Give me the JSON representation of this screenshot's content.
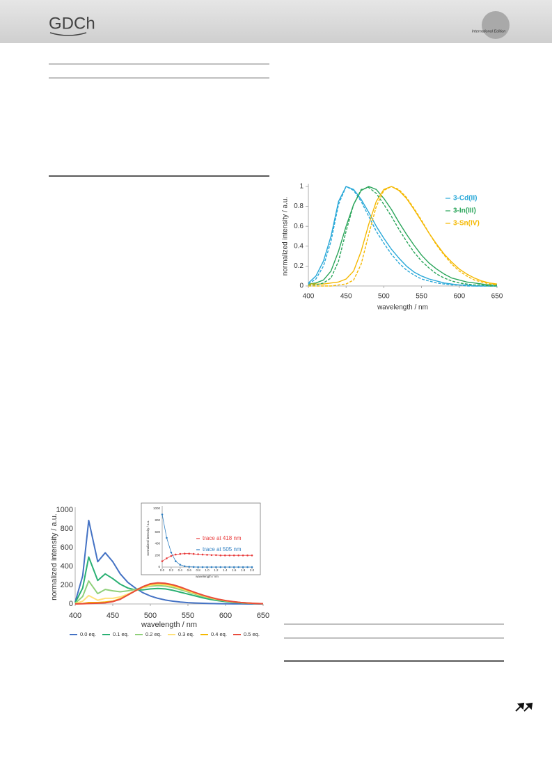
{
  "header": {
    "logo": "GDCh",
    "edition": "International Edition"
  },
  "chart_data": [
    {
      "type": "line",
      "xlabel": "wavelength / nm",
      "ylabel": "normalized intensity / a.u.",
      "xlim": [
        400,
        650
      ],
      "xticks": [
        400,
        450,
        500,
        550,
        600,
        650
      ],
      "ylim": [
        0,
        1
      ],
      "yticks": [
        0,
        0.2,
        0.4,
        0.6,
        0.8,
        1
      ],
      "grid": false,
      "legend": "upper right",
      "x": [
        400,
        410,
        420,
        430,
        440,
        450,
        460,
        470,
        480,
        490,
        500,
        510,
        520,
        530,
        540,
        550,
        560,
        570,
        580,
        590,
        600,
        610,
        620,
        630,
        640,
        650
      ],
      "series": [
        {
          "name": "3-Cd(II)",
          "color": "#29a8d8",
          "values": [
            0.03,
            0.1,
            0.25,
            0.5,
            0.85,
            1.0,
            0.97,
            0.87,
            0.74,
            0.6,
            0.48,
            0.37,
            0.28,
            0.2,
            0.14,
            0.1,
            0.07,
            0.05,
            0.03,
            0.02,
            0.01,
            0.01,
            0,
            0,
            0,
            0
          ]
        },
        {
          "name": "3-In(III)",
          "color": "#2aa55a",
          "values": [
            0.02,
            0.03,
            0.06,
            0.15,
            0.35,
            0.6,
            0.82,
            0.96,
            1.0,
            0.97,
            0.88,
            0.77,
            0.64,
            0.52,
            0.41,
            0.31,
            0.23,
            0.17,
            0.12,
            0.08,
            0.06,
            0.04,
            0.03,
            0.02,
            0.01,
            0.01
          ]
        },
        {
          "name": "3-Sn(IV)",
          "color": "#f5b800",
          "values": [
            0.02,
            0.02,
            0.02,
            0.03,
            0.04,
            0.07,
            0.15,
            0.35,
            0.62,
            0.85,
            0.97,
            1.0,
            0.96,
            0.88,
            0.77,
            0.65,
            0.53,
            0.42,
            0.32,
            0.24,
            0.17,
            0.12,
            0.08,
            0.05,
            0.03,
            0.02
          ]
        },
        {
          "color": "#29a8d8",
          "dashed": true,
          "values": [
            0.02,
            0.07,
            0.2,
            0.45,
            0.82,
            1.0,
            0.96,
            0.85,
            0.7,
            0.55,
            0.43,
            0.32,
            0.23,
            0.16,
            0.11,
            0.07,
            0.05,
            0.03,
            0.02,
            0.01,
            0.01,
            0,
            0,
            0,
            0,
            0
          ]
        },
        {
          "color": "#2aa55a",
          "dashed": true,
          "values": [
            0.01,
            0.01,
            0.03,
            0.08,
            0.25,
            0.55,
            0.82,
            0.97,
            0.99,
            0.93,
            0.82,
            0.7,
            0.57,
            0.45,
            0.34,
            0.25,
            0.18,
            0.12,
            0.08,
            0.05,
            0.03,
            0.02,
            0.01,
            0.01,
            0,
            0
          ]
        },
        {
          "color": "#f5b800",
          "dashed": true,
          "values": [
            0,
            0,
            0,
            0,
            0.01,
            0.02,
            0.06,
            0.22,
            0.52,
            0.8,
            0.96,
            1.0,
            0.97,
            0.89,
            0.78,
            0.66,
            0.53,
            0.41,
            0.31,
            0.22,
            0.15,
            0.1,
            0.06,
            0.04,
            0.02,
            0.01
          ]
        }
      ]
    },
    {
      "type": "line",
      "xlabel": "wavelength / nm",
      "ylabel": "normalized intensity / a.u.",
      "xlim": [
        400,
        650
      ],
      "xticks": [
        400,
        450,
        500,
        550,
        600,
        650
      ],
      "ylim": [
        0,
        1000
      ],
      "yticks": [
        0,
        200,
        400,
        600,
        800,
        1000
      ],
      "grid": false,
      "legend": "bottom",
      "x": [
        400,
        410,
        418,
        430,
        440,
        450,
        460,
        470,
        480,
        490,
        500,
        510,
        520,
        530,
        540,
        550,
        560,
        570,
        580,
        590,
        600,
        610,
        620,
        630,
        640,
        650
      ],
      "series": [
        {
          "name": "0.0 eq.",
          "color": "#4472c4",
          "values": [
            20,
            300,
            890,
            450,
            545,
            450,
            320,
            230,
            170,
            120,
            85,
            60,
            42,
            30,
            20,
            14,
            10,
            7,
            5,
            3,
            2,
            1,
            1,
            0,
            0,
            0
          ]
        },
        {
          "name": "0.1 eq.",
          "color": "#2ab073",
          "values": [
            12,
            170,
            500,
            250,
            320,
            270,
            210,
            170,
            150,
            150,
            160,
            165,
            160,
            145,
            125,
            105,
            85,
            65,
            48,
            35,
            25,
            17,
            11,
            7,
            4,
            2
          ]
        },
        {
          "name": "0.2 eq.",
          "color": "#8fd07a",
          "values": [
            6,
            80,
            245,
            110,
            155,
            140,
            130,
            140,
            155,
            175,
            190,
            195,
            190,
            175,
            152,
            128,
            103,
            80,
            60,
            44,
            31,
            21,
            14,
            9,
            5,
            3
          ]
        },
        {
          "name": "0.3 eq.",
          "color": "#ffe17a",
          "values": [
            3,
            30,
            90,
            40,
            60,
            60,
            75,
            105,
            140,
            175,
            200,
            210,
            205,
            190,
            165,
            138,
            112,
            88,
            66,
            48,
            34,
            23,
            15,
            10,
            6,
            3
          ]
        },
        {
          "name": "0.4 eq.",
          "color": "#f5b800",
          "values": [
            1,
            5,
            15,
            15,
            20,
            30,
            55,
            95,
            140,
            180,
            210,
            220,
            215,
            200,
            175,
            147,
            118,
            92,
            69,
            50,
            35,
            24,
            16,
            10,
            6,
            3
          ]
        },
        {
          "name": "0.5 eq.",
          "color": "#e84c3d",
          "values": [
            0,
            2,
            5,
            8,
            12,
            25,
            50,
            95,
            140,
            185,
            215,
            225,
            220,
            205,
            180,
            150,
            121,
            94,
            71,
            51,
            36,
            25,
            16,
            10,
            6,
            3
          ]
        }
      ]
    },
    {
      "type": "line",
      "markers": true,
      "xlabel": "wavelength / nm",
      "ylabel": "normalized intensity / a.u.",
      "xlim": [
        0,
        2
      ],
      "xticks": [
        {
          "value": 0,
          "label": "0.0"
        },
        0.2,
        0.4,
        0.6,
        0.8,
        {
          "value": 1,
          "label": "1.0"
        },
        1.2,
        1.4,
        1.6,
        1.8,
        {
          "value": 2,
          "label": "2.0"
        }
      ],
      "ylim": [
        0,
        1000
      ],
      "yticks": [
        0,
        200,
        400,
        600,
        800,
        1000
      ],
      "grid": false,
      "legend": "upper right",
      "x": [
        0,
        0.1,
        0.2,
        0.3,
        0.4,
        0.5,
        0.6,
        0.7,
        0.8,
        0.9,
        1.0,
        1.1,
        1.2,
        1.3,
        1.4,
        1.5,
        1.6,
        1.7,
        1.8,
        1.9,
        2.0
      ],
      "series": [
        {
          "name": "trace at 418 nm",
          "color": "#e83a3a",
          "values": [
            100,
            150,
            190,
            215,
            225,
            230,
            230,
            225,
            220,
            215,
            210,
            205,
            205,
            200,
            200,
            200,
            200,
            200,
            200,
            200,
            200
          ]
        },
        {
          "name": "trace at 505 nm",
          "color": "#2f7fc1",
          "values": [
            900,
            500,
            250,
            100,
            40,
            15,
            5,
            2,
            0,
            0,
            0,
            0,
            0,
            0,
            0,
            0,
            0,
            0,
            0,
            0,
            0
          ]
        }
      ]
    }
  ]
}
